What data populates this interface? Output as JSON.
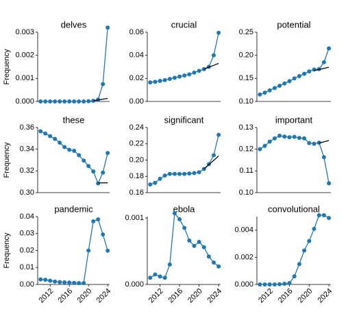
{
  "chart_data": [
    {
      "type": "line",
      "title": "delves",
      "ylabel": "Frequency",
      "x": [
        2010,
        2011,
        2012,
        2013,
        2014,
        2015,
        2016,
        2017,
        2018,
        2019,
        2020,
        2021,
        2022,
        2023,
        2024
      ],
      "xlim": [
        2009.4,
        2024.4
      ],
      "ylim": [
        0,
        0.003
      ],
      "yticks": [
        {
          "value": 0,
          "label": "0.000"
        },
        0.001,
        0.002,
        0.003
      ],
      "series": [
        {
          "color": "#1f77b4",
          "markers": true,
          "values": [
            0,
            0,
            0,
            0,
            0,
            0,
            0,
            0,
            0,
            0,
            1e-05,
            3e-05,
            8e-05,
            0.00075,
            0.0032
          ]
        },
        {
          "color": "#000000",
          "markers": false,
          "values": [
            null,
            null,
            null,
            null,
            null,
            null,
            null,
            null,
            null,
            null,
            null,
            3e-05,
            6e-05,
            0.0001,
            0.00013
          ]
        }
      ]
    },
    {
      "type": "line",
      "title": "crucial",
      "x": [
        2010,
        2011,
        2012,
        2013,
        2014,
        2015,
        2016,
        2017,
        2018,
        2019,
        2020,
        2021,
        2022,
        2023,
        2024
      ],
      "xlim": [
        2009.4,
        2024.4
      ],
      "ylim": [
        0,
        0.06
      ],
      "yticks": [
        {
          "value": 0,
          "label": "0.00"
        },
        0.02,
        0.04,
        0.06
      ],
      "series": [
        {
          "color": "#1f77b4",
          "markers": true,
          "values": [
            0.0165,
            0.017,
            0.0178,
            0.0185,
            0.0195,
            0.0205,
            0.0215,
            0.0225,
            0.0235,
            0.025,
            0.0265,
            0.028,
            0.03,
            0.04,
            0.0595
          ]
        },
        {
          "color": "#000000",
          "markers": false,
          "values": [
            null,
            null,
            null,
            null,
            null,
            null,
            null,
            null,
            null,
            null,
            null,
            0.028,
            0.0297,
            0.0313,
            0.033
          ]
        }
      ]
    },
    {
      "type": "line",
      "title": "potential",
      "x": [
        2010,
        2011,
        2012,
        2013,
        2014,
        2015,
        2016,
        2017,
        2018,
        2019,
        2020,
        2021,
        2022,
        2023,
        2024
      ],
      "xlim": [
        2009.4,
        2024.4
      ],
      "ylim": [
        0.1,
        0.25
      ],
      "yticks": [
        {
          "value": 0.1,
          "label": "0.10"
        },
        0.15,
        {
          "value": 0.2,
          "label": "0.20"
        },
        0.25
      ],
      "series": [
        {
          "color": "#1f77b4",
          "markers": true,
          "values": [
            0.115,
            0.119,
            0.124,
            0.129,
            0.134,
            0.139,
            0.144,
            0.15,
            0.155,
            0.16,
            0.165,
            0.169,
            0.17,
            0.185,
            0.215
          ]
        },
        {
          "color": "#000000",
          "markers": false,
          "values": [
            null,
            null,
            null,
            null,
            null,
            null,
            null,
            null,
            null,
            null,
            null,
            0.167,
            0.1693,
            0.1717,
            0.174
          ]
        }
      ]
    },
    {
      "type": "line",
      "title": "these",
      "ylabel": "Frequency",
      "x": [
        2010,
        2011,
        2012,
        2013,
        2014,
        2015,
        2016,
        2017,
        2018,
        2019,
        2020,
        2021,
        2022,
        2023,
        2024
      ],
      "xlim": [
        2009.4,
        2024.4
      ],
      "ylim": [
        0.3,
        0.36
      ],
      "yticks": [
        {
          "value": 0.3,
          "label": "0.30"
        },
        0.32,
        0.34,
        0.36
      ],
      "series": [
        {
          "color": "#1f77b4",
          "markers": true,
          "values": [
            0.3565,
            0.3545,
            0.352,
            0.3495,
            0.346,
            0.342,
            0.3395,
            0.3385,
            0.3345,
            0.3295,
            0.3245,
            0.3195,
            0.3085,
            0.3185,
            0.3365
          ]
        },
        {
          "color": "#000000",
          "markers": false,
          "values": [
            null,
            null,
            null,
            null,
            null,
            null,
            null,
            null,
            null,
            null,
            null,
            null,
            0.309,
            0.309,
            0.309
          ]
        }
      ]
    },
    {
      "type": "line",
      "title": "significant",
      "x": [
        2010,
        2011,
        2012,
        2013,
        2014,
        2015,
        2016,
        2017,
        2018,
        2019,
        2020,
        2021,
        2022,
        2023,
        2024
      ],
      "xlim": [
        2009.4,
        2024.4
      ],
      "ylim": [
        0.16,
        0.24
      ],
      "yticks": [
        0.16,
        0.18,
        {
          "value": 0.2,
          "label": "0.20"
        },
        0.22,
        0.24
      ],
      "series": [
        {
          "color": "#1f77b4",
          "markers": true,
          "values": [
            0.17,
            0.172,
            0.177,
            0.181,
            0.183,
            0.183,
            0.183,
            0.183,
            0.1835,
            0.184,
            0.185,
            0.189,
            0.195,
            0.206,
            0.231
          ]
        },
        {
          "color": "#000000",
          "markers": false,
          "values": [
            null,
            null,
            null,
            null,
            null,
            null,
            null,
            null,
            null,
            null,
            null,
            0.189,
            0.1943,
            0.1997,
            0.205
          ]
        }
      ]
    },
    {
      "type": "line",
      "title": "important",
      "x": [
        2010,
        2011,
        2012,
        2013,
        2014,
        2015,
        2016,
        2017,
        2018,
        2019,
        2020,
        2021,
        2022,
        2023,
        2024
      ],
      "xlim": [
        2009.4,
        2024.4
      ],
      "ylim": [
        0.1,
        0.13
      ],
      "yticks": [
        {
          "value": 0.1,
          "label": "0.10"
        },
        0.11,
        0.12,
        0.13
      ],
      "series": [
        {
          "color": "#1f77b4",
          "markers": true,
          "values": [
            0.12,
            0.1215,
            0.1235,
            0.125,
            0.1262,
            0.1258,
            0.1255,
            0.1257,
            0.1252,
            0.125,
            0.1228,
            0.1225,
            0.123,
            0.1163,
            0.1043
          ]
        },
        {
          "color": "#000000",
          "markers": false,
          "values": [
            null,
            null,
            null,
            null,
            null,
            null,
            null,
            null,
            null,
            null,
            null,
            null,
            0.1228,
            0.1234,
            0.124
          ]
        }
      ]
    },
    {
      "type": "line",
      "title": "pandemic",
      "ylabel": "Frequency",
      "x": [
        2010,
        2011,
        2012,
        2013,
        2014,
        2015,
        2016,
        2017,
        2018,
        2019,
        2020,
        2021,
        2022,
        2023,
        2024
      ],
      "xlim": [
        2009.4,
        2024.4
      ],
      "xticks": [
        2012,
        2016,
        2020,
        2024
      ],
      "ylim": [
        0,
        0.04
      ],
      "yticks": [
        {
          "value": 0,
          "label": "0.00"
        },
        0.01,
        0.02,
        0.03,
        0.04
      ],
      "series": [
        {
          "color": "#1f77b4",
          "markers": true,
          "values": [
            0.003,
            0.0028,
            0.0022,
            0.0017,
            0.0014,
            0.0012,
            0.0011,
            0.0009,
            0.0008,
            0.0008,
            0.02,
            0.0372,
            0.0384,
            0.0295,
            0.0199
          ]
        }
      ]
    },
    {
      "type": "line",
      "title": "ebola",
      "x": [
        2010,
        2011,
        2012,
        2013,
        2014,
        2015,
        2016,
        2017,
        2018,
        2019,
        2020,
        2021,
        2022,
        2023,
        2024
      ],
      "xlim": [
        2009.4,
        2024.4
      ],
      "xticks": [
        2012,
        2016,
        2020,
        2024
      ],
      "ylim": [
        0,
        0.00102
      ],
      "yticks": [
        {
          "value": 0,
          "label": "0.000"
        },
        0.001
      ],
      "series": [
        {
          "color": "#1f77b4",
          "markers": true,
          "values": [
            0.0001,
            0.00015,
            0.00012,
            0.0001,
            0.0003,
            0.00107,
            0.00098,
            0.00085,
            0.00066,
            0.00058,
            0.00064,
            0.00056,
            0.00042,
            0.00033,
            0.00027
          ]
        }
      ]
    },
    {
      "type": "line",
      "title": "convolutional",
      "x": [
        2010,
        2011,
        2012,
        2013,
        2014,
        2015,
        2016,
        2017,
        2018,
        2019,
        2020,
        2021,
        2022,
        2023,
        2024
      ],
      "xlim": [
        2009.4,
        2024.4
      ],
      "xticks": [
        2012,
        2016,
        2020,
        2024
      ],
      "ylim": [
        0,
        0.005
      ],
      "yticks": [
        {
          "value": 0,
          "label": "0.000"
        },
        0.002,
        0.004
      ],
      "series": [
        {
          "color": "#1f77b4",
          "markers": true,
          "values": [
            0,
            0,
            0,
            0,
            2e-05,
            5e-05,
            0.0001,
            0.0006,
            0.0015,
            0.0025,
            0.0032,
            0.0041,
            0.0051,
            0.0051,
            0.0049
          ]
        }
      ]
    }
  ]
}
